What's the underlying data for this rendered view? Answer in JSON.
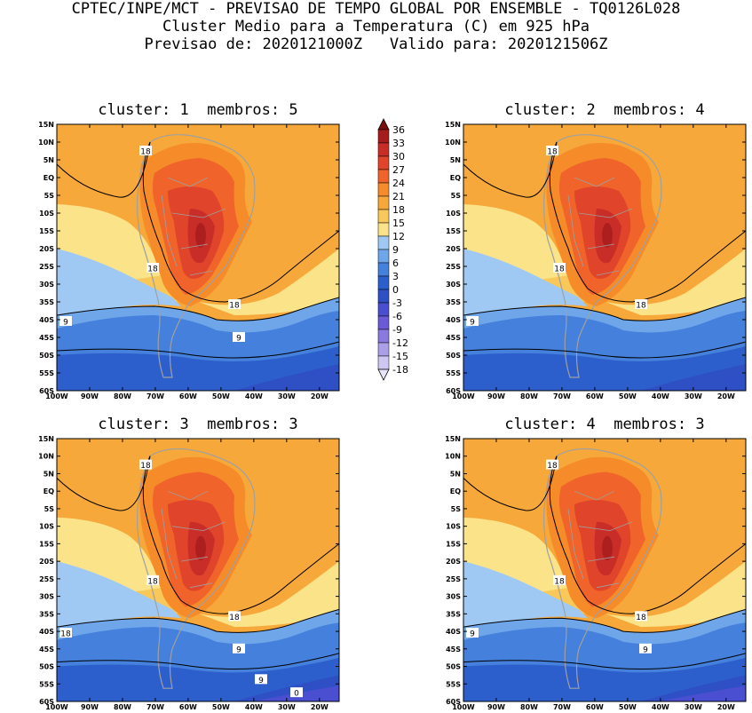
{
  "header": {
    "line1": "CPTEC/INPE/MCT - PREVISAO DE TEMPO GLOBAL POR ENSEMBLE - TQ0126L028",
    "line2": "Cluster Medio para a Temperatura (C) em 925 hPa",
    "line3": "Previsao de: 2020121000Z   Valido para: 2020121506Z"
  },
  "panels": [
    {
      "title": "cluster: 1  membros: 5"
    },
    {
      "title": "cluster: 2  membros: 4"
    },
    {
      "title": "cluster: 3  membros: 3"
    },
    {
      "title": "cluster: 4  membros: 3"
    }
  ],
  "axes": {
    "lat_labels": [
      "15N",
      "10N",
      "5N",
      "EQ",
      "5S",
      "10S",
      "15S",
      "20S",
      "25S",
      "30S",
      "35S",
      "40S",
      "45S",
      "50S",
      "55S",
      "60S"
    ],
    "lon_labels": [
      "100W",
      "90W",
      "80W",
      "70W",
      "60W",
      "50W",
      "40W",
      "30W",
      "20W"
    ]
  },
  "colorbar": {
    "levels": [
      "36",
      "33",
      "30",
      "27",
      "24",
      "21",
      "18",
      "15",
      "12",
      "9",
      "6",
      "3",
      "0",
      "-3",
      "-6",
      "-9",
      "-12",
      "-15",
      "-18"
    ],
    "colors": [
      "#7a0f0f",
      "#a61b1b",
      "#c92d28",
      "#e0442a",
      "#f0632a",
      "#f68b2a",
      "#f7a83a",
      "#f9c85a",
      "#fbe38a",
      "#9fc9f2",
      "#6fa6ea",
      "#4480dc",
      "#2c5fcc",
      "#2f4fc4",
      "#4a4ed0",
      "#6a5ad6",
      "#8a7ae0",
      "#ab9fe8",
      "#cfc7f3",
      "#e8e4fa"
    ]
  },
  "contour_labels": {
    "p1": [
      "18",
      "18",
      "18",
      "9",
      "9"
    ],
    "p2": [
      "18",
      "18",
      "18",
      "9"
    ],
    "p3": [
      "18",
      "18",
      "18",
      "18",
      "9",
      "9",
      "0"
    ],
    "p4": [
      "18",
      "18",
      "18",
      "9",
      "9"
    ]
  }
}
